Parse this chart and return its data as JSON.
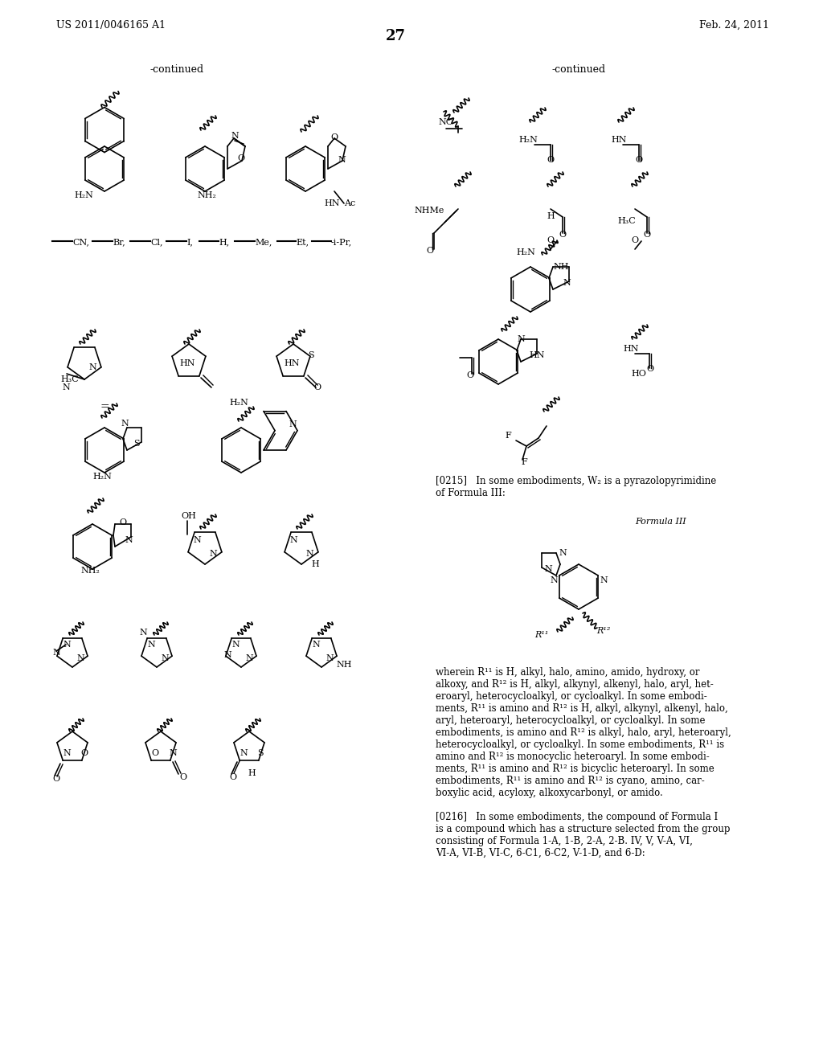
{
  "page_number": "27",
  "patent_number": "US 2011/0046165 A1",
  "patent_date": "Feb. 24, 2011",
  "background_color": "#ffffff",
  "text_color": "#000000",
  "continued_label": "-continued",
  "paragraph_0215": "[0215]   In some embodiments, W₂ is a pyrazolopyrimidine\nof Formula III:",
  "formula_iii_label": "Formula III",
  "paragraph_0216": "[0216]   In some embodiments, the compound of Formula I\nis a compound which has a structure selected from the group\nconsisting of Formula 1-A, 1-B, 2-A, 2-B. IV, V, V-A, VI,\nVI-A, VI-B, VI-C, 6-C1, 6-C2, V-1-D, and 6-D:",
  "wherein_text": "wherein R¹¹ is H, alkyl, halo, amino, amido, hydroxy, or\nalkoxy, and R¹² is H, alkyl, alkynyl, alkenyl, halo, aryl, het-\neroaryl, heterocycloalkyl, or cycloalkyl. In some embodi-\nments, R¹¹ is amino and R¹² is H, alkyl, alkynyl, alkenyl, halo,\naryl, heteroaryl, heterocycloalkyl, or cycloalkyl. In some\nembodiments, is amino and R¹² is alkyl, halo, aryl, heteroaryl,\nheterocycloalkyl, or cycloalkyl. In some embodiments, R¹¹ is\namino and R¹² is monocyclic heteroaryl. In some embodi-\nments, R¹¹ is amino and R¹² is bicyclic heteroaryl. In some\nembodiments, R¹¹ is amino and R¹² is cyano, amino, car-\nboxylic acid, acyloxy, alkoxycarbonyl, or amido."
}
